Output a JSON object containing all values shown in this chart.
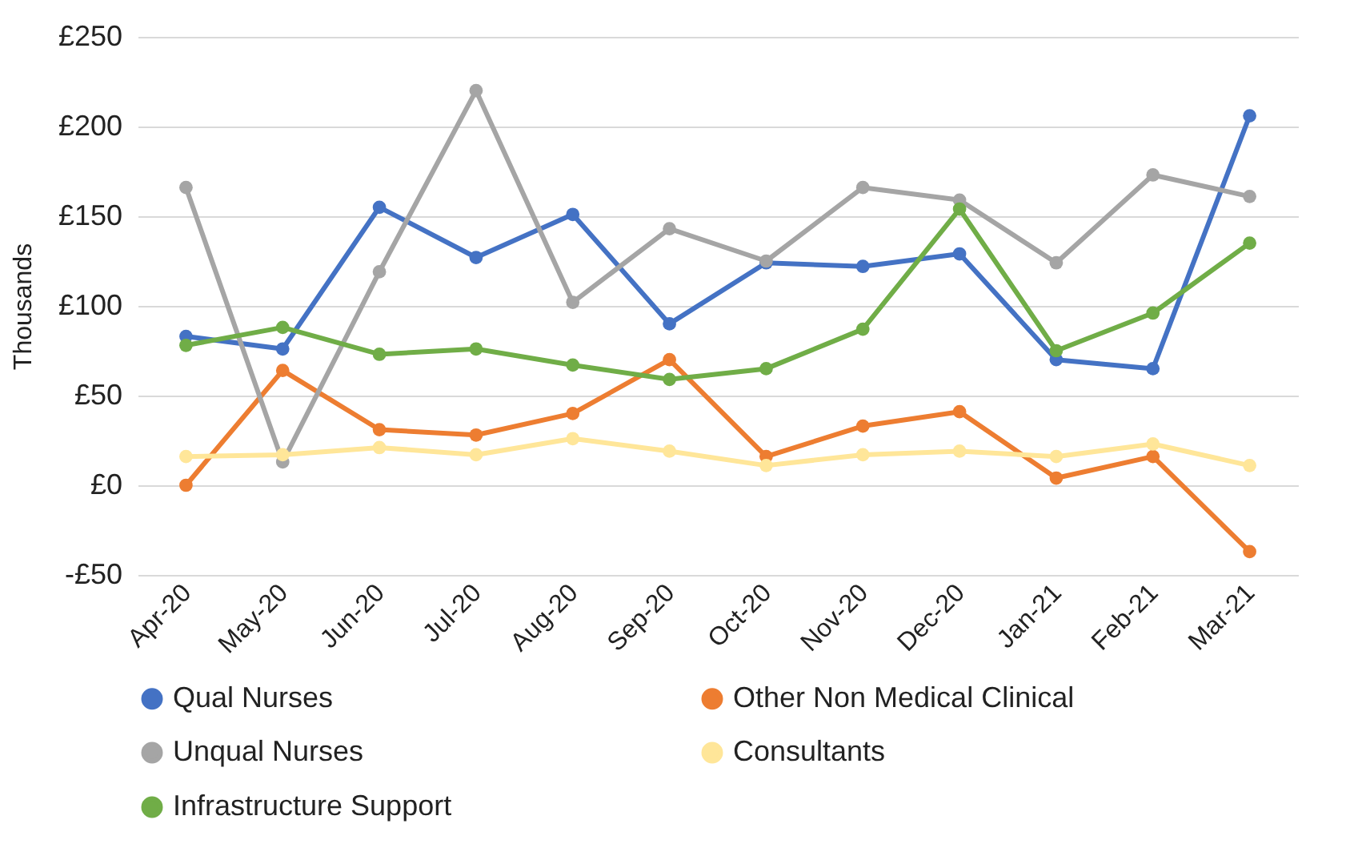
{
  "chart_data": {
    "type": "line",
    "ylabel": "Thousands",
    "categories": [
      "Apr-20",
      "May-20",
      "Jun-20",
      "Jul-20",
      "Aug-20",
      "Sep-20",
      "Oct-20",
      "Nov-20",
      "Dec-20",
      "Jan-21",
      "Feb-21",
      "Mar-21"
    ],
    "series": [
      {
        "name": "Qual Nurses",
        "color": "#4472c4",
        "values": [
          83,
          76,
          155,
          127,
          151,
          90,
          124,
          122,
          129,
          70,
          65,
          206
        ]
      },
      {
        "name": "Other Non Medical Clinical",
        "color": "#ed7d31",
        "values": [
          0,
          64,
          31,
          28,
          40,
          70,
          16,
          33,
          41,
          4,
          16,
          -37
        ]
      },
      {
        "name": "Unqual Nurses",
        "color": "#a5a5a5",
        "values": [
          166,
          13,
          119,
          220,
          102,
          143,
          125,
          166,
          159,
          124,
          173,
          161
        ]
      },
      {
        "name": "Consultants",
        "color": "#ffe699",
        "values": [
          16,
          17,
          21,
          17,
          26,
          19,
          11,
          17,
          19,
          16,
          23,
          11
        ]
      },
      {
        "name": "Infrastructure Support",
        "color": "#70ad47",
        "values": [
          78,
          88,
          73,
          76,
          67,
          59,
          65,
          87,
          154,
          75,
          96,
          135
        ]
      }
    ],
    "ylim": [
      -50,
      250
    ],
    "yticks": [
      {
        "value": -50,
        "label": "-£50"
      },
      {
        "value": 0,
        "label": "£0"
      },
      {
        "value": 50,
        "label": "£50"
      },
      {
        "value": 100,
        "label": "£100"
      },
      {
        "value": 150,
        "label": "£150"
      },
      {
        "value": 200,
        "label": "£200"
      },
      {
        "value": 250,
        "label": "£250"
      }
    ],
    "grid": "y",
    "legend": "bottom",
    "marker": "circle",
    "line_style": "solid"
  }
}
